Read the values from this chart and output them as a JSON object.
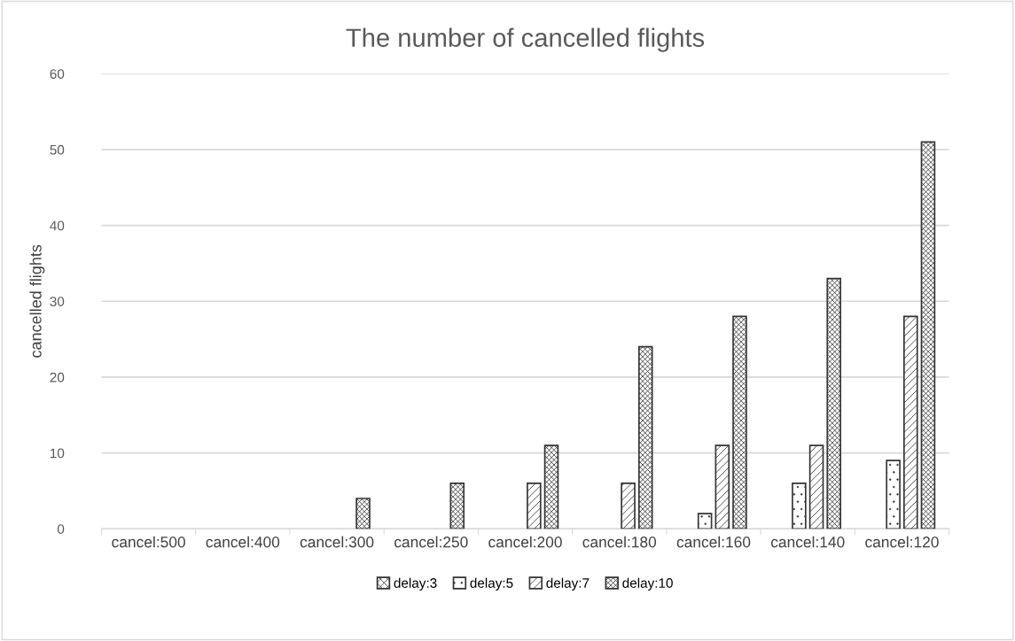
{
  "chart_data": {
    "type": "bar",
    "title": "The number of cancelled flights",
    "ylabel": "cancelled flights",
    "categories": [
      "cancel:500",
      "cancel:400",
      "cancel:300",
      "cancel:250",
      "cancel:200",
      "cancel:180",
      "cancel:160",
      "cancel:140",
      "cancel:120"
    ],
    "series": [
      {
        "name": "delay:3",
        "color": "#333333",
        "values": [
          null,
          null,
          null,
          null,
          null,
          null,
          null,
          null,
          null
        ]
      },
      {
        "name": "delay:5",
        "color": "#333333",
        "values": [
          null,
          null,
          null,
          null,
          null,
          null,
          2,
          6,
          9
        ]
      },
      {
        "name": "delay:7",
        "color": "#333333",
        "values": [
          null,
          null,
          null,
          null,
          6,
          6,
          11,
          11,
          28
        ]
      },
      {
        "name": "delay:10",
        "color": "#333333",
        "values": [
          null,
          null,
          4,
          6,
          11,
          24,
          28,
          33,
          51
        ]
      }
    ],
    "ylim": [
      0,
      60
    ],
    "yticks": [
      0,
      10,
      20,
      30,
      40,
      50,
      60
    ],
    "grid": "y",
    "legend": "bottom"
  }
}
